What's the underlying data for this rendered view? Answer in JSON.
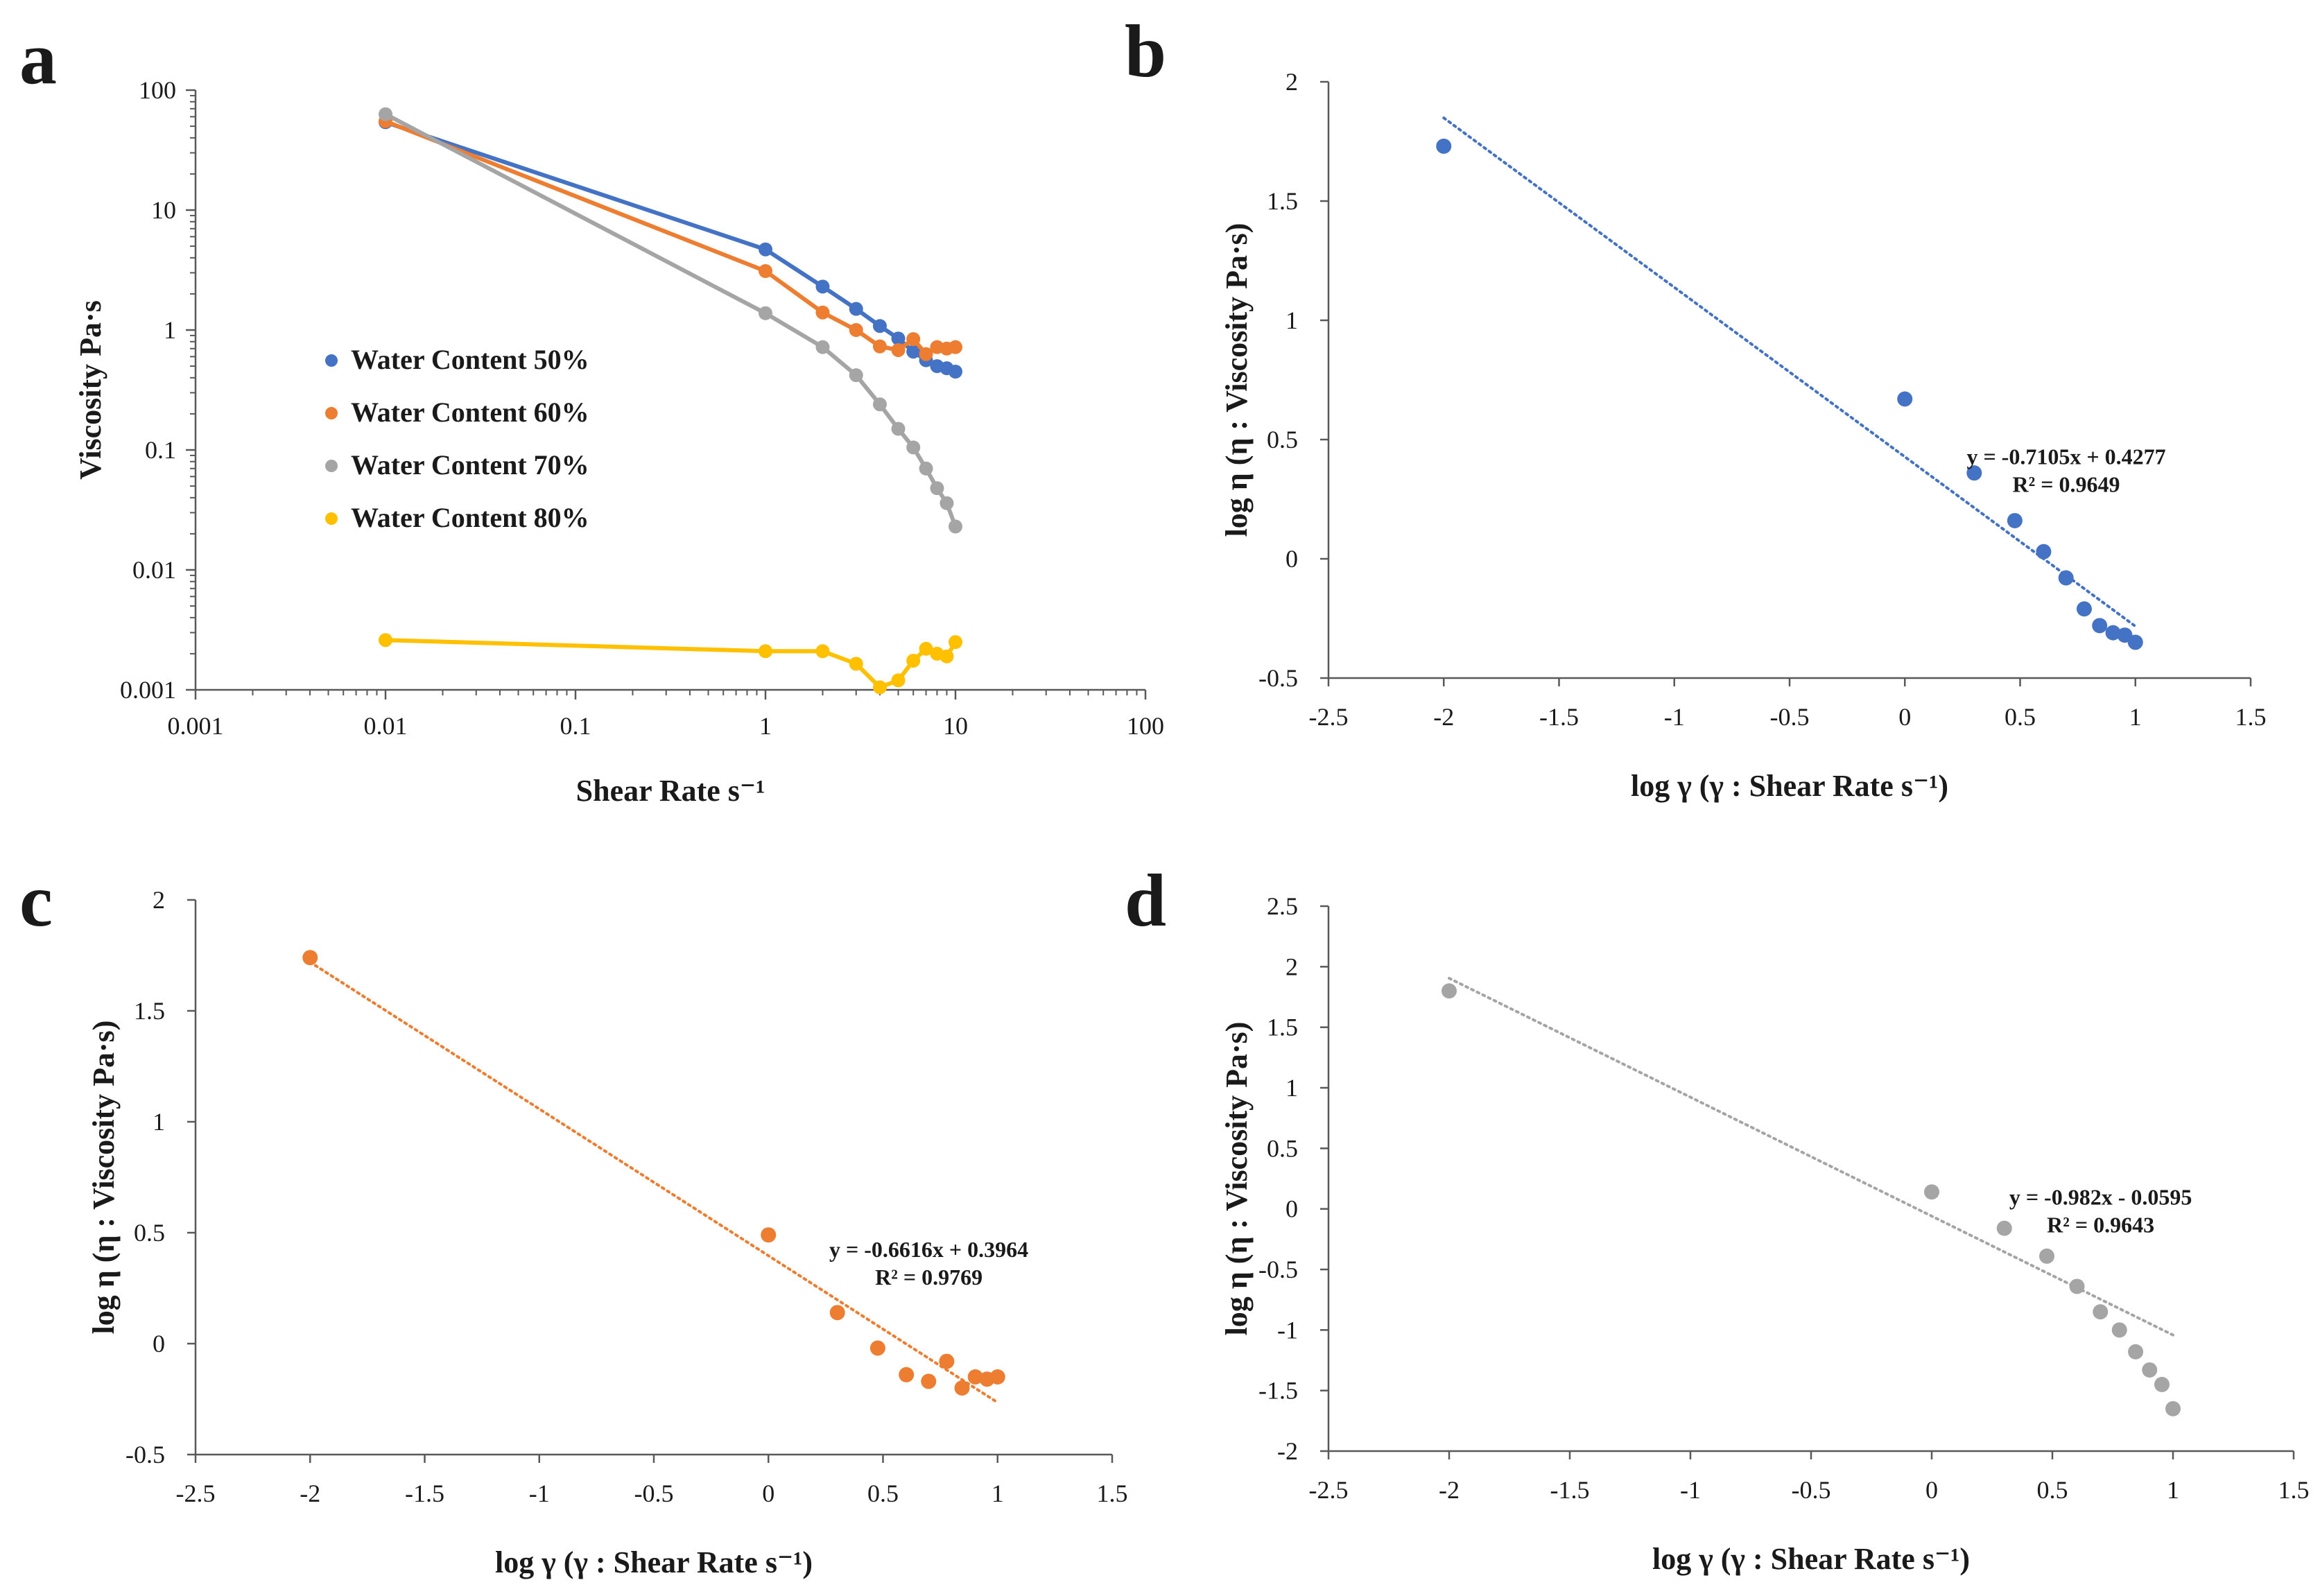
{
  "figure": {
    "panels": [
      {
        "letter": "a"
      },
      {
        "letter": "b"
      },
      {
        "letter": "c"
      },
      {
        "letter": "d"
      }
    ]
  },
  "chart_data": [
    {
      "id": "a",
      "type": "line",
      "scale": "log-log",
      "title": "",
      "xlabel": "Shear Rate s⁻¹",
      "ylabel": "Viscosity Pa·s",
      "xlim": [
        0.001,
        100
      ],
      "ylim": [
        0.001,
        100
      ],
      "xticks": [
        "0.001",
        "0.01",
        "0.1",
        "1",
        "10",
        "100"
      ],
      "yticks": [
        "0.001",
        "0.01",
        "0.1",
        "1",
        "10",
        "100"
      ],
      "x": [
        0.01,
        1,
        2,
        3,
        4,
        5,
        6,
        7,
        8,
        9,
        10
      ],
      "series": [
        {
          "name": "Water Content 50%",
          "color": "#4472C4",
          "values": [
            54,
            4.7,
            2.3,
            1.5,
            1.08,
            0.85,
            0.66,
            0.56,
            0.5,
            0.48,
            0.45
          ]
        },
        {
          "name": "Water Content 60%",
          "color": "#ED7D31",
          "values": [
            55,
            3.1,
            1.4,
            1.0,
            0.73,
            0.68,
            0.84,
            0.63,
            0.72,
            0.7,
            0.72
          ]
        },
        {
          "name": "Water Content 70%",
          "color": "#A5A5A5",
          "values": [
            63,
            1.38,
            0.72,
            0.42,
            0.24,
            0.15,
            0.105,
            0.07,
            0.048,
            0.036,
            0.023
          ]
        },
        {
          "name": "Water Content 80%",
          "color": "#FFC000",
          "values": [
            0.0026,
            0.0021,
            0.0021,
            0.00165,
            0.00105,
            0.0012,
            0.00175,
            0.0022,
            0.002,
            0.0019,
            0.0025
          ]
        }
      ],
      "legend": "center-left"
    },
    {
      "id": "b",
      "type": "scatter",
      "title": "",
      "xlabel": "log γ (γ : Shear Rate s⁻¹)",
      "ylabel": "log η (η : Viscosity Pa·s)",
      "xlim": [
        -2.5,
        1.5
      ],
      "ylim": [
        -0.5,
        2
      ],
      "xticks": [
        "-2.5",
        "-2",
        "-1.5",
        "-1",
        "-0.5",
        "0",
        "0.5",
        "1",
        "1.5"
      ],
      "yticks": [
        "-0.5",
        "0",
        "0.5",
        "1",
        "1.5",
        "2"
      ],
      "color": "#4472C4",
      "x": [
        -2,
        0,
        0.301,
        0.477,
        0.602,
        0.699,
        0.778,
        0.845,
        0.903,
        0.954,
        1
      ],
      "y": [
        1.73,
        0.67,
        0.36,
        0.16,
        0.03,
        -0.08,
        -0.21,
        -0.28,
        -0.31,
        -0.32,
        -0.35
      ],
      "trendline": {
        "slope": -0.7105,
        "intercept": 0.4277,
        "x_range": [
          -2,
          1
        ]
      },
      "equation": "y = -0.7105x + 0.4277",
      "r2": "R² = 0.9649"
    },
    {
      "id": "c",
      "type": "scatter",
      "title": "",
      "xlabel": "log γ (γ : Shear Rate s⁻¹)",
      "ylabel": "log η (η : Viscosity Pa·s)",
      "xlim": [
        -2.5,
        1.5
      ],
      "ylim": [
        -0.5,
        2
      ],
      "xticks": [
        "-2.5",
        "-2",
        "-1.5",
        "-1",
        "-0.5",
        "0",
        "0.5",
        "1",
        "1.5"
      ],
      "yticks": [
        "-0.5",
        "0",
        "0.5",
        "1",
        "1.5",
        "2"
      ],
      "color": "#ED7D31",
      "x": [
        -2,
        0,
        0.301,
        0.477,
        0.602,
        0.699,
        0.778,
        0.845,
        0.903,
        0.954,
        1
      ],
      "y": [
        1.74,
        0.49,
        0.14,
        -0.02,
        -0.14,
        -0.17,
        -0.08,
        -0.2,
        -0.15,
        -0.16,
        -0.15
      ],
      "trendline": {
        "slope": -0.6616,
        "intercept": 0.3964,
        "x_range": [
          -2,
          1
        ]
      },
      "equation": "y = -0.6616x + 0.3964",
      "r2": "R² = 0.9769"
    },
    {
      "id": "d",
      "type": "scatter",
      "title": "",
      "xlabel": "log γ (γ : Shear Rate s⁻¹)",
      "ylabel": "log η (η : Viscosity Pa·s)",
      "xlim": [
        -2.5,
        1.5
      ],
      "ylim": [
        -2,
        2.5
      ],
      "xticks": [
        "-2.5",
        "-2",
        "-1.5",
        "-1",
        "-0.5",
        "0",
        "0.5",
        "1",
        "1.5"
      ],
      "yticks": [
        "-2",
        "-1.5",
        "-1",
        "-0.5",
        "0",
        "0.5",
        "1",
        "1.5",
        "2",
        "2.5"
      ],
      "color": "#A5A5A5",
      "x": [
        -2,
        0,
        0.301,
        0.477,
        0.602,
        0.699,
        0.778,
        0.845,
        0.903,
        0.954,
        1
      ],
      "y": [
        1.8,
        0.14,
        -0.16,
        -0.39,
        -0.64,
        -0.85,
        -1.0,
        -1.18,
        -1.33,
        -1.45,
        -1.65
      ],
      "trendline": {
        "slope": -0.982,
        "intercept": -0.0595,
        "x_range": [
          -2,
          1
        ]
      },
      "equation": "y = -0.982x - 0.0595",
      "r2": "R² = 0.9643"
    }
  ]
}
